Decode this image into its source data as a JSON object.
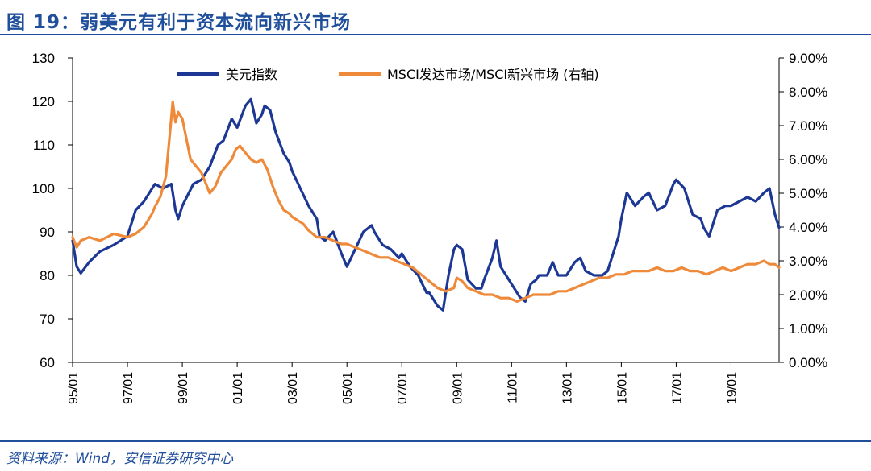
{
  "figure": {
    "title": "图 19：弱美元有利于资本流向新兴市场",
    "source": "资料来源：Wind，安信证券研究中心"
  },
  "chart_data": {
    "type": "line",
    "title": "图 19：弱美元有利于资本流向新兴市场",
    "xlabel": "",
    "ylabel": "",
    "x_ticks": [
      "95/01",
      "97/01",
      "99/01",
      "01/01",
      "03/01",
      "05/01",
      "07/01",
      "09/01",
      "11/01",
      "13/01",
      "15/01",
      "17/01",
      "19/01"
    ],
    "x_range": [
      1995.0,
      2020.75
    ],
    "y_left": {
      "min": 60,
      "max": 130,
      "ticks": [
        "60",
        "70",
        "80",
        "90",
        "100",
        "110",
        "120",
        "130"
      ]
    },
    "y_right": {
      "min": 0,
      "max": 0.09,
      "ticks": [
        "0.00%",
        "1.00%",
        "2.00%",
        "3.00%",
        "4.00%",
        "5.00%",
        "6.00%",
        "7.00%",
        "8.00%",
        "9.00%"
      ]
    },
    "legend_position": "top-center",
    "grid": false,
    "series": [
      {
        "name": "美元指数",
        "axis": "left",
        "color": "#1c3894",
        "points": [
          [
            1995.0,
            88
          ],
          [
            1995.15,
            82
          ],
          [
            1995.3,
            80.5
          ],
          [
            1995.6,
            83
          ],
          [
            1996.0,
            85.5
          ],
          [
            1996.5,
            87
          ],
          [
            1997.0,
            89
          ],
          [
            1997.3,
            95
          ],
          [
            1997.6,
            97
          ],
          [
            1997.9,
            100
          ],
          [
            1998.0,
            101
          ],
          [
            1998.3,
            100
          ],
          [
            1998.6,
            101
          ],
          [
            1998.75,
            95
          ],
          [
            1998.85,
            93
          ],
          [
            1999.0,
            96
          ],
          [
            1999.4,
            101
          ],
          [
            1999.7,
            102
          ],
          [
            2000.0,
            105
          ],
          [
            2000.3,
            110
          ],
          [
            2000.5,
            111
          ],
          [
            2000.8,
            116
          ],
          [
            2001.0,
            114
          ],
          [
            2001.3,
            119
          ],
          [
            2001.5,
            120.5
          ],
          [
            2001.7,
            115
          ],
          [
            2001.9,
            117
          ],
          [
            2002.0,
            119
          ],
          [
            2002.2,
            118
          ],
          [
            2002.4,
            113
          ],
          [
            2002.7,
            108
          ],
          [
            2002.9,
            106
          ],
          [
            2003.0,
            104
          ],
          [
            2003.3,
            100
          ],
          [
            2003.6,
            96
          ],
          [
            2003.9,
            93
          ],
          [
            2004.0,
            89
          ],
          [
            2004.2,
            88
          ],
          [
            2004.5,
            90
          ],
          [
            2004.8,
            85
          ],
          [
            2005.0,
            82
          ],
          [
            2005.3,
            86
          ],
          [
            2005.6,
            90
          ],
          [
            2005.9,
            91.5
          ],
          [
            2006.0,
            90
          ],
          [
            2006.3,
            87
          ],
          [
            2006.6,
            86
          ],
          [
            2006.9,
            84
          ],
          [
            2007.0,
            85
          ],
          [
            2007.3,
            82
          ],
          [
            2007.6,
            80
          ],
          [
            2007.9,
            76
          ],
          [
            2008.0,
            76
          ],
          [
            2008.3,
            73
          ],
          [
            2008.5,
            72
          ],
          [
            2008.7,
            80
          ],
          [
            2008.9,
            86
          ],
          [
            2009.0,
            87
          ],
          [
            2009.2,
            86
          ],
          [
            2009.4,
            79
          ],
          [
            2009.7,
            77
          ],
          [
            2009.9,
            77
          ],
          [
            2010.0,
            79
          ],
          [
            2010.3,
            84
          ],
          [
            2010.45,
            88
          ],
          [
            2010.6,
            82
          ],
          [
            2010.9,
            79
          ],
          [
            2011.0,
            78
          ],
          [
            2011.3,
            75
          ],
          [
            2011.5,
            74
          ],
          [
            2011.7,
            78
          ],
          [
            2011.9,
            79
          ],
          [
            2012.0,
            80
          ],
          [
            2012.3,
            80
          ],
          [
            2012.5,
            83
          ],
          [
            2012.7,
            80
          ],
          [
            2013.0,
            80
          ],
          [
            2013.3,
            83
          ],
          [
            2013.5,
            84
          ],
          [
            2013.7,
            81
          ],
          [
            2014.0,
            80
          ],
          [
            2014.3,
            80
          ],
          [
            2014.5,
            81
          ],
          [
            2014.7,
            85
          ],
          [
            2014.9,
            89
          ],
          [
            2015.0,
            93
          ],
          [
            2015.2,
            99
          ],
          [
            2015.5,
            96
          ],
          [
            2015.8,
            98
          ],
          [
            2016.0,
            99
          ],
          [
            2016.3,
            95
          ],
          [
            2016.6,
            96
          ],
          [
            2016.9,
            101
          ],
          [
            2017.0,
            102
          ],
          [
            2017.3,
            100
          ],
          [
            2017.6,
            94
          ],
          [
            2017.9,
            93
          ],
          [
            2018.0,
            91
          ],
          [
            2018.2,
            89
          ],
          [
            2018.5,
            95
          ],
          [
            2018.8,
            96
          ],
          [
            2019.0,
            96
          ],
          [
            2019.3,
            97
          ],
          [
            2019.6,
            98
          ],
          [
            2019.9,
            97
          ],
          [
            2020.2,
            99
          ],
          [
            2020.4,
            100
          ],
          [
            2020.6,
            94
          ],
          [
            2020.75,
            91
          ]
        ]
      },
      {
        "name": "MSCI发达市场/MSCI新兴市场 (右轴)",
        "axis": "right",
        "color": "#ee8a3a",
        "points": [
          [
            1995.0,
            0.037
          ],
          [
            1995.15,
            0.034
          ],
          [
            1995.3,
            0.036
          ],
          [
            1995.6,
            0.037
          ],
          [
            1996.0,
            0.036
          ],
          [
            1996.5,
            0.038
          ],
          [
            1997.0,
            0.037
          ],
          [
            1997.3,
            0.038
          ],
          [
            1997.6,
            0.04
          ],
          [
            1997.9,
            0.044
          ],
          [
            1998.0,
            0.046
          ],
          [
            1998.2,
            0.049
          ],
          [
            1998.4,
            0.055
          ],
          [
            1998.55,
            0.068
          ],
          [
            1998.65,
            0.077
          ],
          [
            1998.75,
            0.071
          ],
          [
            1998.85,
            0.074
          ],
          [
            1999.0,
            0.072
          ],
          [
            1999.15,
            0.066
          ],
          [
            1999.3,
            0.06
          ],
          [
            1999.5,
            0.058
          ],
          [
            1999.7,
            0.056
          ],
          [
            1999.9,
            0.052
          ],
          [
            2000.0,
            0.05
          ],
          [
            2000.2,
            0.052
          ],
          [
            2000.4,
            0.056
          ],
          [
            2000.6,
            0.058
          ],
          [
            2000.8,
            0.06
          ],
          [
            2000.95,
            0.063
          ],
          [
            2001.1,
            0.064
          ],
          [
            2001.3,
            0.062
          ],
          [
            2001.5,
            0.06
          ],
          [
            2001.7,
            0.059
          ],
          [
            2001.9,
            0.06
          ],
          [
            2002.1,
            0.057
          ],
          [
            2002.3,
            0.052
          ],
          [
            2002.5,
            0.048
          ],
          [
            2002.7,
            0.045
          ],
          [
            2002.9,
            0.044
          ],
          [
            2003.0,
            0.043
          ],
          [
            2003.2,
            0.042
          ],
          [
            2003.4,
            0.041
          ],
          [
            2003.6,
            0.039
          ],
          [
            2003.9,
            0.037
          ],
          [
            2004.2,
            0.037
          ],
          [
            2004.5,
            0.036
          ],
          [
            2004.8,
            0.035
          ],
          [
            2005.0,
            0.035
          ],
          [
            2005.3,
            0.034
          ],
          [
            2005.6,
            0.033
          ],
          [
            2005.9,
            0.032
          ],
          [
            2006.2,
            0.031
          ],
          [
            2006.5,
            0.031
          ],
          [
            2006.8,
            0.03
          ],
          [
            2007.1,
            0.029
          ],
          [
            2007.4,
            0.028
          ],
          [
            2007.7,
            0.026
          ],
          [
            2008.0,
            0.024
          ],
          [
            2008.3,
            0.022
          ],
          [
            2008.6,
            0.021
          ],
          [
            2008.9,
            0.022
          ],
          [
            2009.0,
            0.025
          ],
          [
            2009.2,
            0.024
          ],
          [
            2009.4,
            0.022
          ],
          [
            2009.7,
            0.021
          ],
          [
            2010.0,
            0.02
          ],
          [
            2010.3,
            0.02
          ],
          [
            2010.6,
            0.019
          ],
          [
            2010.9,
            0.019
          ],
          [
            2011.2,
            0.018
          ],
          [
            2011.5,
            0.019
          ],
          [
            2011.8,
            0.02
          ],
          [
            2012.1,
            0.02
          ],
          [
            2012.4,
            0.02
          ],
          [
            2012.7,
            0.021
          ],
          [
            2013.0,
            0.021
          ],
          [
            2013.3,
            0.022
          ],
          [
            2013.6,
            0.023
          ],
          [
            2013.9,
            0.024
          ],
          [
            2014.2,
            0.025
          ],
          [
            2014.5,
            0.025
          ],
          [
            2014.8,
            0.026
          ],
          [
            2015.1,
            0.026
          ],
          [
            2015.4,
            0.027
          ],
          [
            2015.7,
            0.027
          ],
          [
            2016.0,
            0.027
          ],
          [
            2016.3,
            0.028
          ],
          [
            2016.6,
            0.027
          ],
          [
            2016.9,
            0.027
          ],
          [
            2017.2,
            0.028
          ],
          [
            2017.5,
            0.027
          ],
          [
            2017.8,
            0.027
          ],
          [
            2018.1,
            0.026
          ],
          [
            2018.4,
            0.027
          ],
          [
            2018.7,
            0.028
          ],
          [
            2019.0,
            0.027
          ],
          [
            2019.3,
            0.028
          ],
          [
            2019.6,
            0.029
          ],
          [
            2019.9,
            0.029
          ],
          [
            2020.2,
            0.03
          ],
          [
            2020.4,
            0.029
          ],
          [
            2020.6,
            0.029
          ],
          [
            2020.75,
            0.028
          ]
        ]
      }
    ]
  }
}
